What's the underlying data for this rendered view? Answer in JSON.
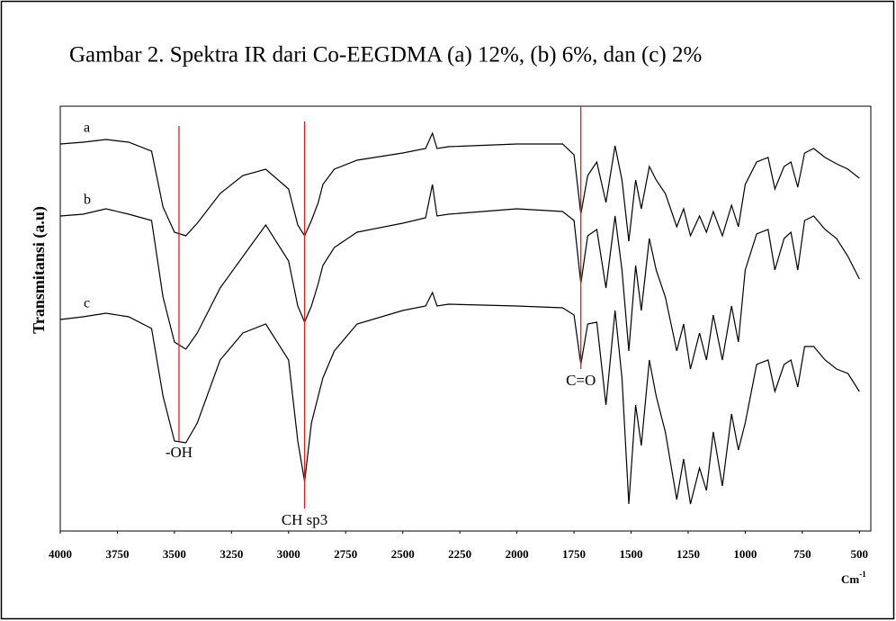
{
  "chart_data": {
    "type": "line",
    "title": "Gambar 2.   Spektra IR dari Co-EEGDMA (a) 12%, (b) 6%, dan (c) 2%",
    "y_label": "Transmitansi (a.u)",
    "x_label": "Cm",
    "x_label_sup": "-1",
    "x": [
      4000,
      3900,
      3800,
      3700,
      3600,
      3550,
      3500,
      3450,
      3400,
      3300,
      3200,
      3100,
      3000,
      2960,
      2930,
      2900,
      2870,
      2850,
      2800,
      2700,
      2500,
      2400,
      2370,
      2350,
      2300,
      2000,
      1800,
      1750,
      1720,
      1690,
      1650,
      1610,
      1570,
      1540,
      1510,
      1480,
      1455,
      1420,
      1390,
      1350,
      1300,
      1270,
      1240,
      1200,
      1170,
      1140,
      1100,
      1060,
      1030,
      1000,
      950,
      900,
      870,
      830,
      800,
      770,
      740,
      700,
      650,
      600,
      550,
      500
    ],
    "series": [
      {
        "name": "a",
        "color": "#000000",
        "values": [
          430,
          432,
          435,
          432,
          422,
          360,
          332,
          328,
          342,
          375,
          395,
          402,
          380,
          340,
          328,
          345,
          365,
          385,
          402,
          412,
          420,
          425,
          442,
          425,
          427,
          430,
          430,
          418,
          352,
          395,
          410,
          365,
          428,
          390,
          322,
          390,
          358,
          405,
          390,
          375,
          338,
          358,
          328,
          350,
          332,
          355,
          328,
          362,
          338,
          385,
          410,
          415,
          380,
          405,
          410,
          382,
          420,
          425,
          415,
          408,
          402,
          392
        ]
      },
      {
        "name": "b",
        "color": "#000000",
        "values": [
          350,
          352,
          358,
          352,
          345,
          260,
          210,
          202,
          220,
          270,
          305,
          340,
          300,
          250,
          232,
          250,
          275,
          295,
          315,
          332,
          342,
          348,
          385,
          350,
          352,
          358,
          355,
          345,
          275,
          328,
          335,
          270,
          350,
          290,
          200,
          295,
          245,
          325,
          290,
          260,
          200,
          230,
          180,
          220,
          190,
          240,
          190,
          250,
          210,
          290,
          330,
          335,
          290,
          325,
          332,
          290,
          345,
          350,
          335,
          325,
          305,
          280
        ]
      },
      {
        "name": "c",
        "color": "#000000",
        "values": [
          235,
          238,
          242,
          238,
          225,
          150,
          100,
          98,
          120,
          190,
          220,
          230,
          190,
          100,
          55,
          120,
          150,
          170,
          200,
          230,
          245,
          250,
          265,
          250,
          252,
          250,
          248,
          240,
          185,
          230,
          232,
          140,
          245,
          170,
          30,
          140,
          95,
          190,
          150,
          110,
          35,
          80,
          30,
          70,
          45,
          110,
          50,
          130,
          90,
          120,
          185,
          190,
          155,
          185,
          190,
          160,
          205,
          205,
          190,
          180,
          175,
          155
        ]
      }
    ],
    "annotations": [
      {
        "text": "-OH",
        "x": 3480,
        "color": "#e02020"
      },
      {
        "text": "CH sp3",
        "x": 2930,
        "color": "#e02020"
      },
      {
        "text": "C=O",
        "x": 1720,
        "color": "#e02020"
      }
    ],
    "xlim": [
      4000,
      450
    ],
    "xticks": [
      4000,
      3750,
      3500,
      3250,
      3000,
      2750,
      2500,
      2250,
      2000,
      1750,
      1500,
      1250,
      1000,
      750,
      500
    ],
    "ylim": [
      0,
      472
    ],
    "grid": false
  }
}
